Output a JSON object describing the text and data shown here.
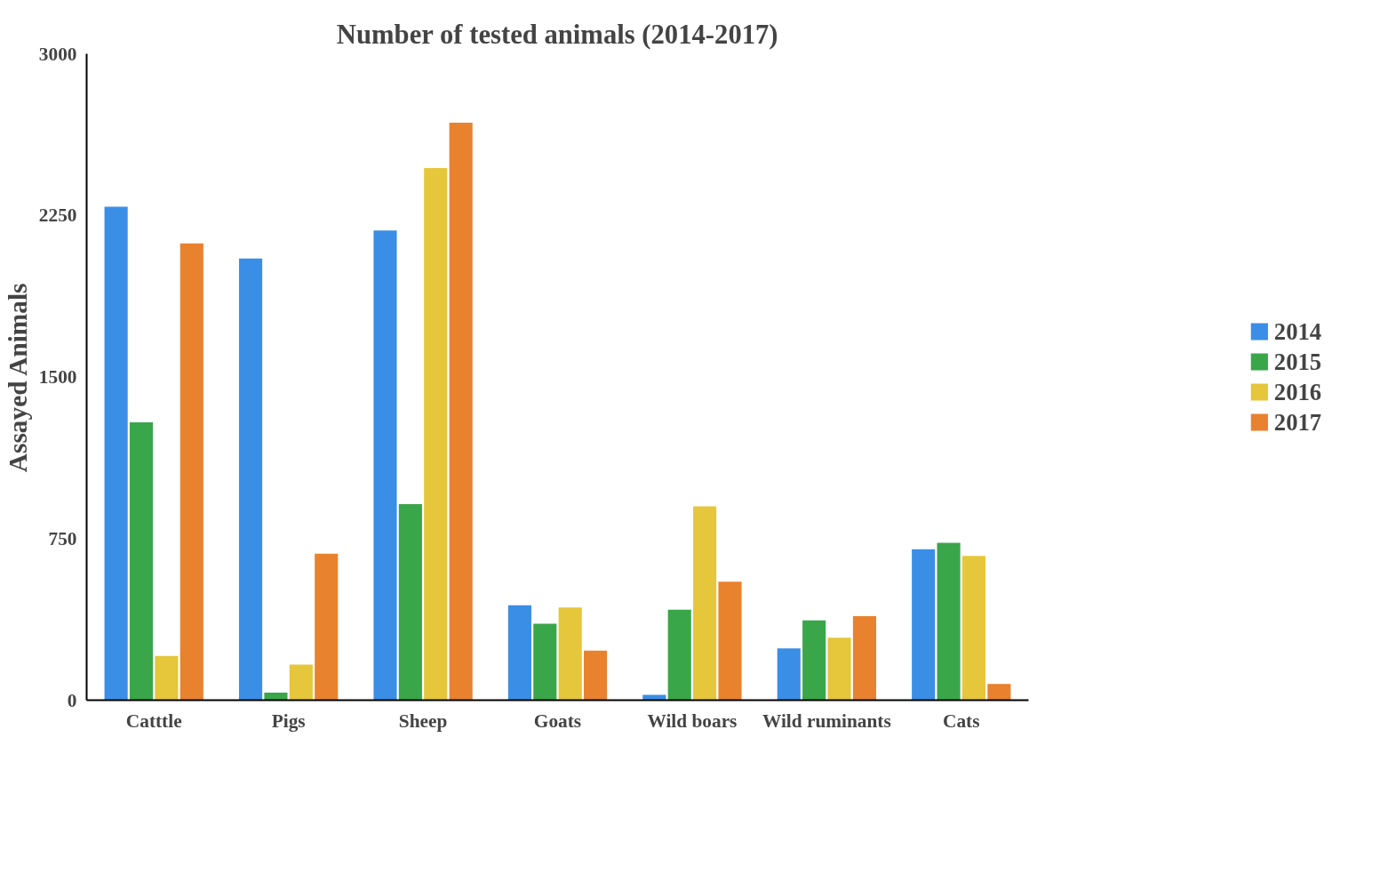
{
  "chart_data": {
    "type": "bar",
    "title": "Number of tested animals (2014-2017)",
    "ylabel": "Assayed Animals",
    "categories": [
      "Catttle",
      "Pigs",
      "Sheep",
      "Goats",
      "Wild boars",
      "Wild ruminants",
      "Cats"
    ],
    "series": [
      {
        "name": "2014",
        "color": "#3a8ee6",
        "values": [
          2290,
          2050,
          2180,
          440,
          25,
          240,
          700
        ]
      },
      {
        "name": "2015",
        "color": "#3aa64a",
        "values": [
          1290,
          35,
          910,
          355,
          420,
          370,
          730
        ]
      },
      {
        "name": "2016",
        "color": "#e6c63a",
        "values": [
          205,
          165,
          2470,
          430,
          900,
          290,
          670
        ]
      },
      {
        "name": "2017",
        "color": "#e8822e",
        "values": [
          2120,
          680,
          2680,
          230,
          550,
          390,
          75
        ]
      }
    ],
    "ylim": [
      0,
      3000
    ],
    "yticks": [
      0,
      750,
      1500,
      2250,
      3000
    ],
    "grid": false,
    "legend": "right"
  }
}
